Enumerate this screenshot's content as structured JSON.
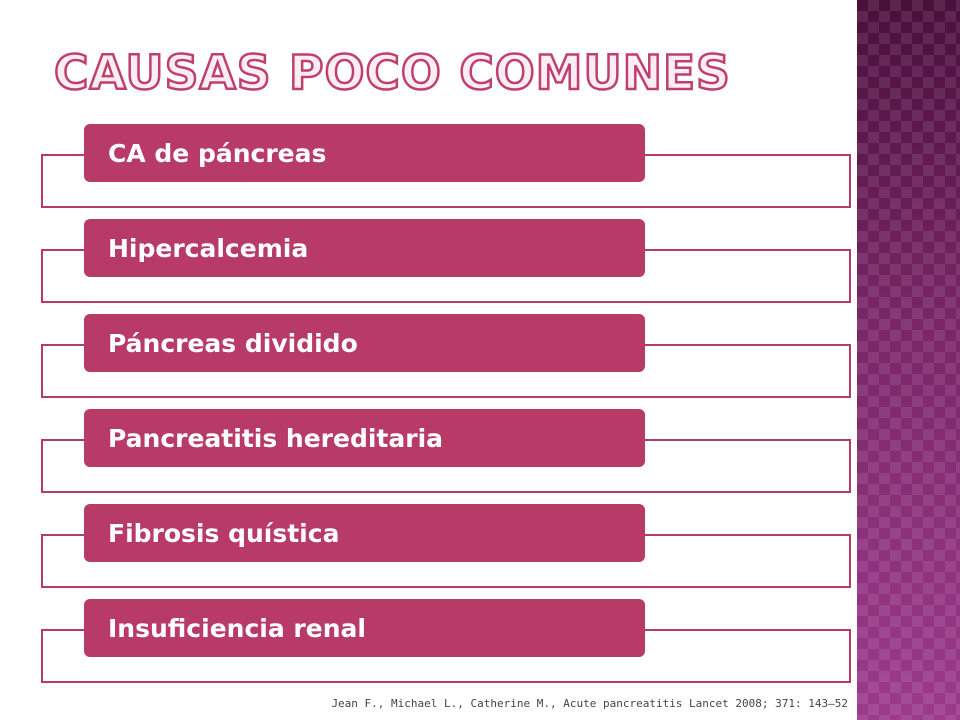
{
  "slide": {
    "title": "Causas poco comunes",
    "items": [
      {
        "label": "CA de páncreas"
      },
      {
        "label": "Hipercalcemia"
      },
      {
        "label": "Páncreas dividido"
      },
      {
        "label": "Pancreatitis hereditaria"
      },
      {
        "label": "Fibrosis quística"
      },
      {
        "label": "Insuficiencia renal"
      }
    ],
    "citation": "Jean F., Michael L., Catherine M., Acute pancreatitis  Lancet 2008; 371: 143–52"
  },
  "colors": {
    "accent": "#b83a66",
    "sidebar": "#8a2f78"
  }
}
